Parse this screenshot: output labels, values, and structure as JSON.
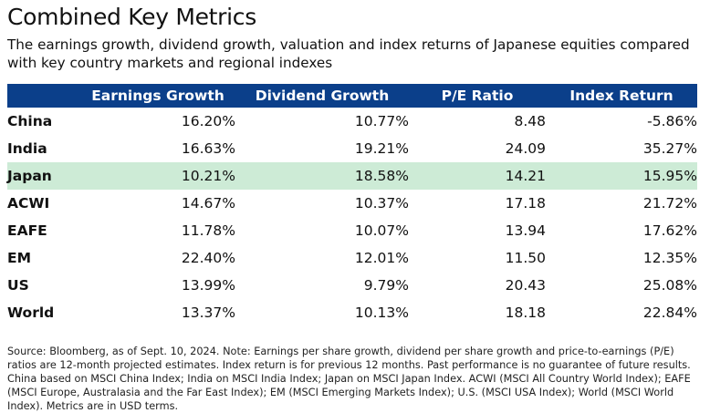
{
  "title": "Combined Key Metrics",
  "subtitle": "The earnings growth, dividend growth, valuation and index returns of Japanese equities compared with key country markets and regional indexes",
  "colors": {
    "header_bg": "#0b3f8a",
    "highlight_row": "#cdebd6"
  },
  "chart_data": {
    "type": "table",
    "columns": [
      "",
      "Earnings Growth",
      "Dividend Growth",
      "P/E Ratio",
      "Index Return"
    ],
    "highlight_row": "Japan",
    "rows": [
      {
        "label": "China",
        "earnings_growth": "16.20%",
        "dividend_growth": "10.77%",
        "pe_ratio": "8.48",
        "index_return": "-5.86%"
      },
      {
        "label": "India",
        "earnings_growth": "16.63%",
        "dividend_growth": "19.21%",
        "pe_ratio": "24.09",
        "index_return": "35.27%"
      },
      {
        "label": "Japan",
        "earnings_growth": "10.21%",
        "dividend_growth": "18.58%",
        "pe_ratio": "14.21",
        "index_return": "15.95%"
      },
      {
        "label": "ACWI",
        "earnings_growth": "14.67%",
        "dividend_growth": "10.37%",
        "pe_ratio": "17.18",
        "index_return": "21.72%"
      },
      {
        "label": "EAFE",
        "earnings_growth": "11.78%",
        "dividend_growth": "10.07%",
        "pe_ratio": "13.94",
        "index_return": "17.62%"
      },
      {
        "label": "EM",
        "earnings_growth": "22.40%",
        "dividend_growth": "12.01%",
        "pe_ratio": "11.50",
        "index_return": "12.35%"
      },
      {
        "label": "US",
        "earnings_growth": "13.99%",
        "dividend_growth": "9.79%",
        "pe_ratio": "20.43",
        "index_return": "25.08%"
      },
      {
        "label": "World",
        "earnings_growth": "13.37%",
        "dividend_growth": "10.13%",
        "pe_ratio": "18.18",
        "index_return": "22.84%"
      }
    ]
  },
  "footnote": "Source: Bloomberg, as of Sept. 10, 2024. Note: Earnings per share growth, dividend per share growth and price-to-earnings (P/E) ratios are 12-month projected estimates. Index return is for previous 12 months. Past performance is no guarantee of future results. China based on MSCI China Index; India on MSCI India Index; Japan on MSCI Japan Index. ACWI (MSCI All Country World Index); EAFE (MSCI Europe, Australasia and the Far East Index); EM (MSCI Emerging Markets Index); U.S. (MSCI USA Index); World (MSCI World Index). Metrics are in USD terms."
}
